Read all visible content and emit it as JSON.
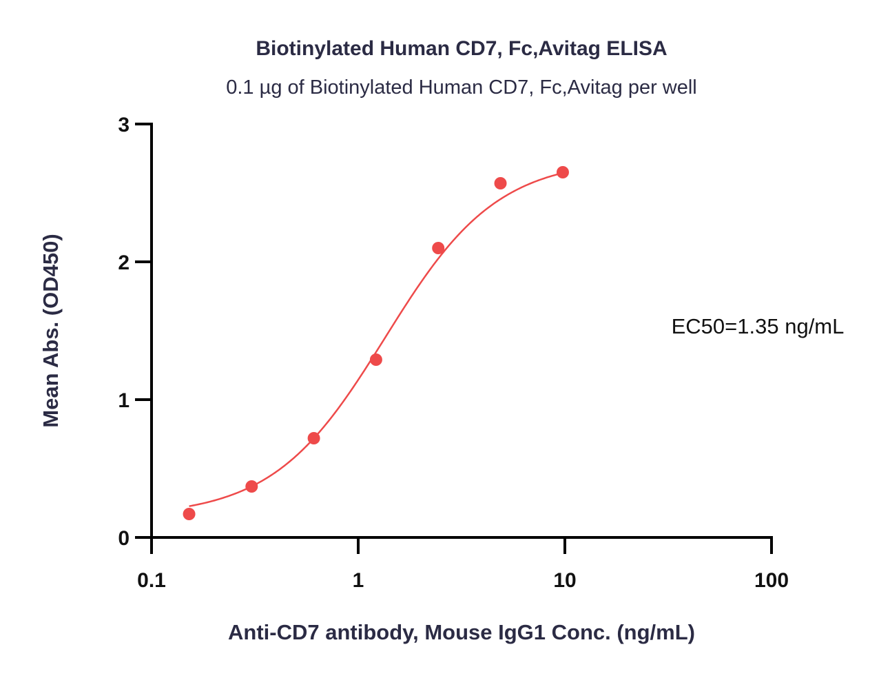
{
  "chart_data": {
    "type": "scatter",
    "title": "Biotinylated Human CD7, Fc,Avitag ELISA",
    "subtitle": "0.1 µg of Biotinylated Human CD7, Fc,Avitag per well",
    "xlabel": "Anti-CD7 antibody, Mouse IgG1 Conc. (ng/mL)",
    "ylabel": "Mean Abs. (OD450)",
    "x_scale": "log",
    "xlim": [
      0.1,
      100
    ],
    "ylim": [
      0,
      3
    ],
    "x_ticks": [
      0.1,
      1,
      10,
      100
    ],
    "x_tick_labels": [
      "0.1",
      "1",
      "10",
      "100"
    ],
    "y_ticks": [
      0,
      1,
      2,
      3
    ],
    "y_tick_labels": [
      "0",
      "1",
      "2",
      "3"
    ],
    "grid": false,
    "series": [
      {
        "x": [
          0.152,
          0.305,
          0.61,
          1.22,
          2.44,
          4.88,
          9.77
        ],
        "y": [
          0.17,
          0.37,
          0.72,
          1.29,
          2.1,
          2.57,
          2.65
        ],
        "color": "#ee4a4a",
        "fit": {
          "model": "4PL",
          "bottom": 0.15,
          "top": 2.75,
          "ec50": 1.35,
          "hill": 1.6
        }
      }
    ],
    "annotations": [
      {
        "text": "EC50=1.35 ng/mL"
      }
    ]
  }
}
